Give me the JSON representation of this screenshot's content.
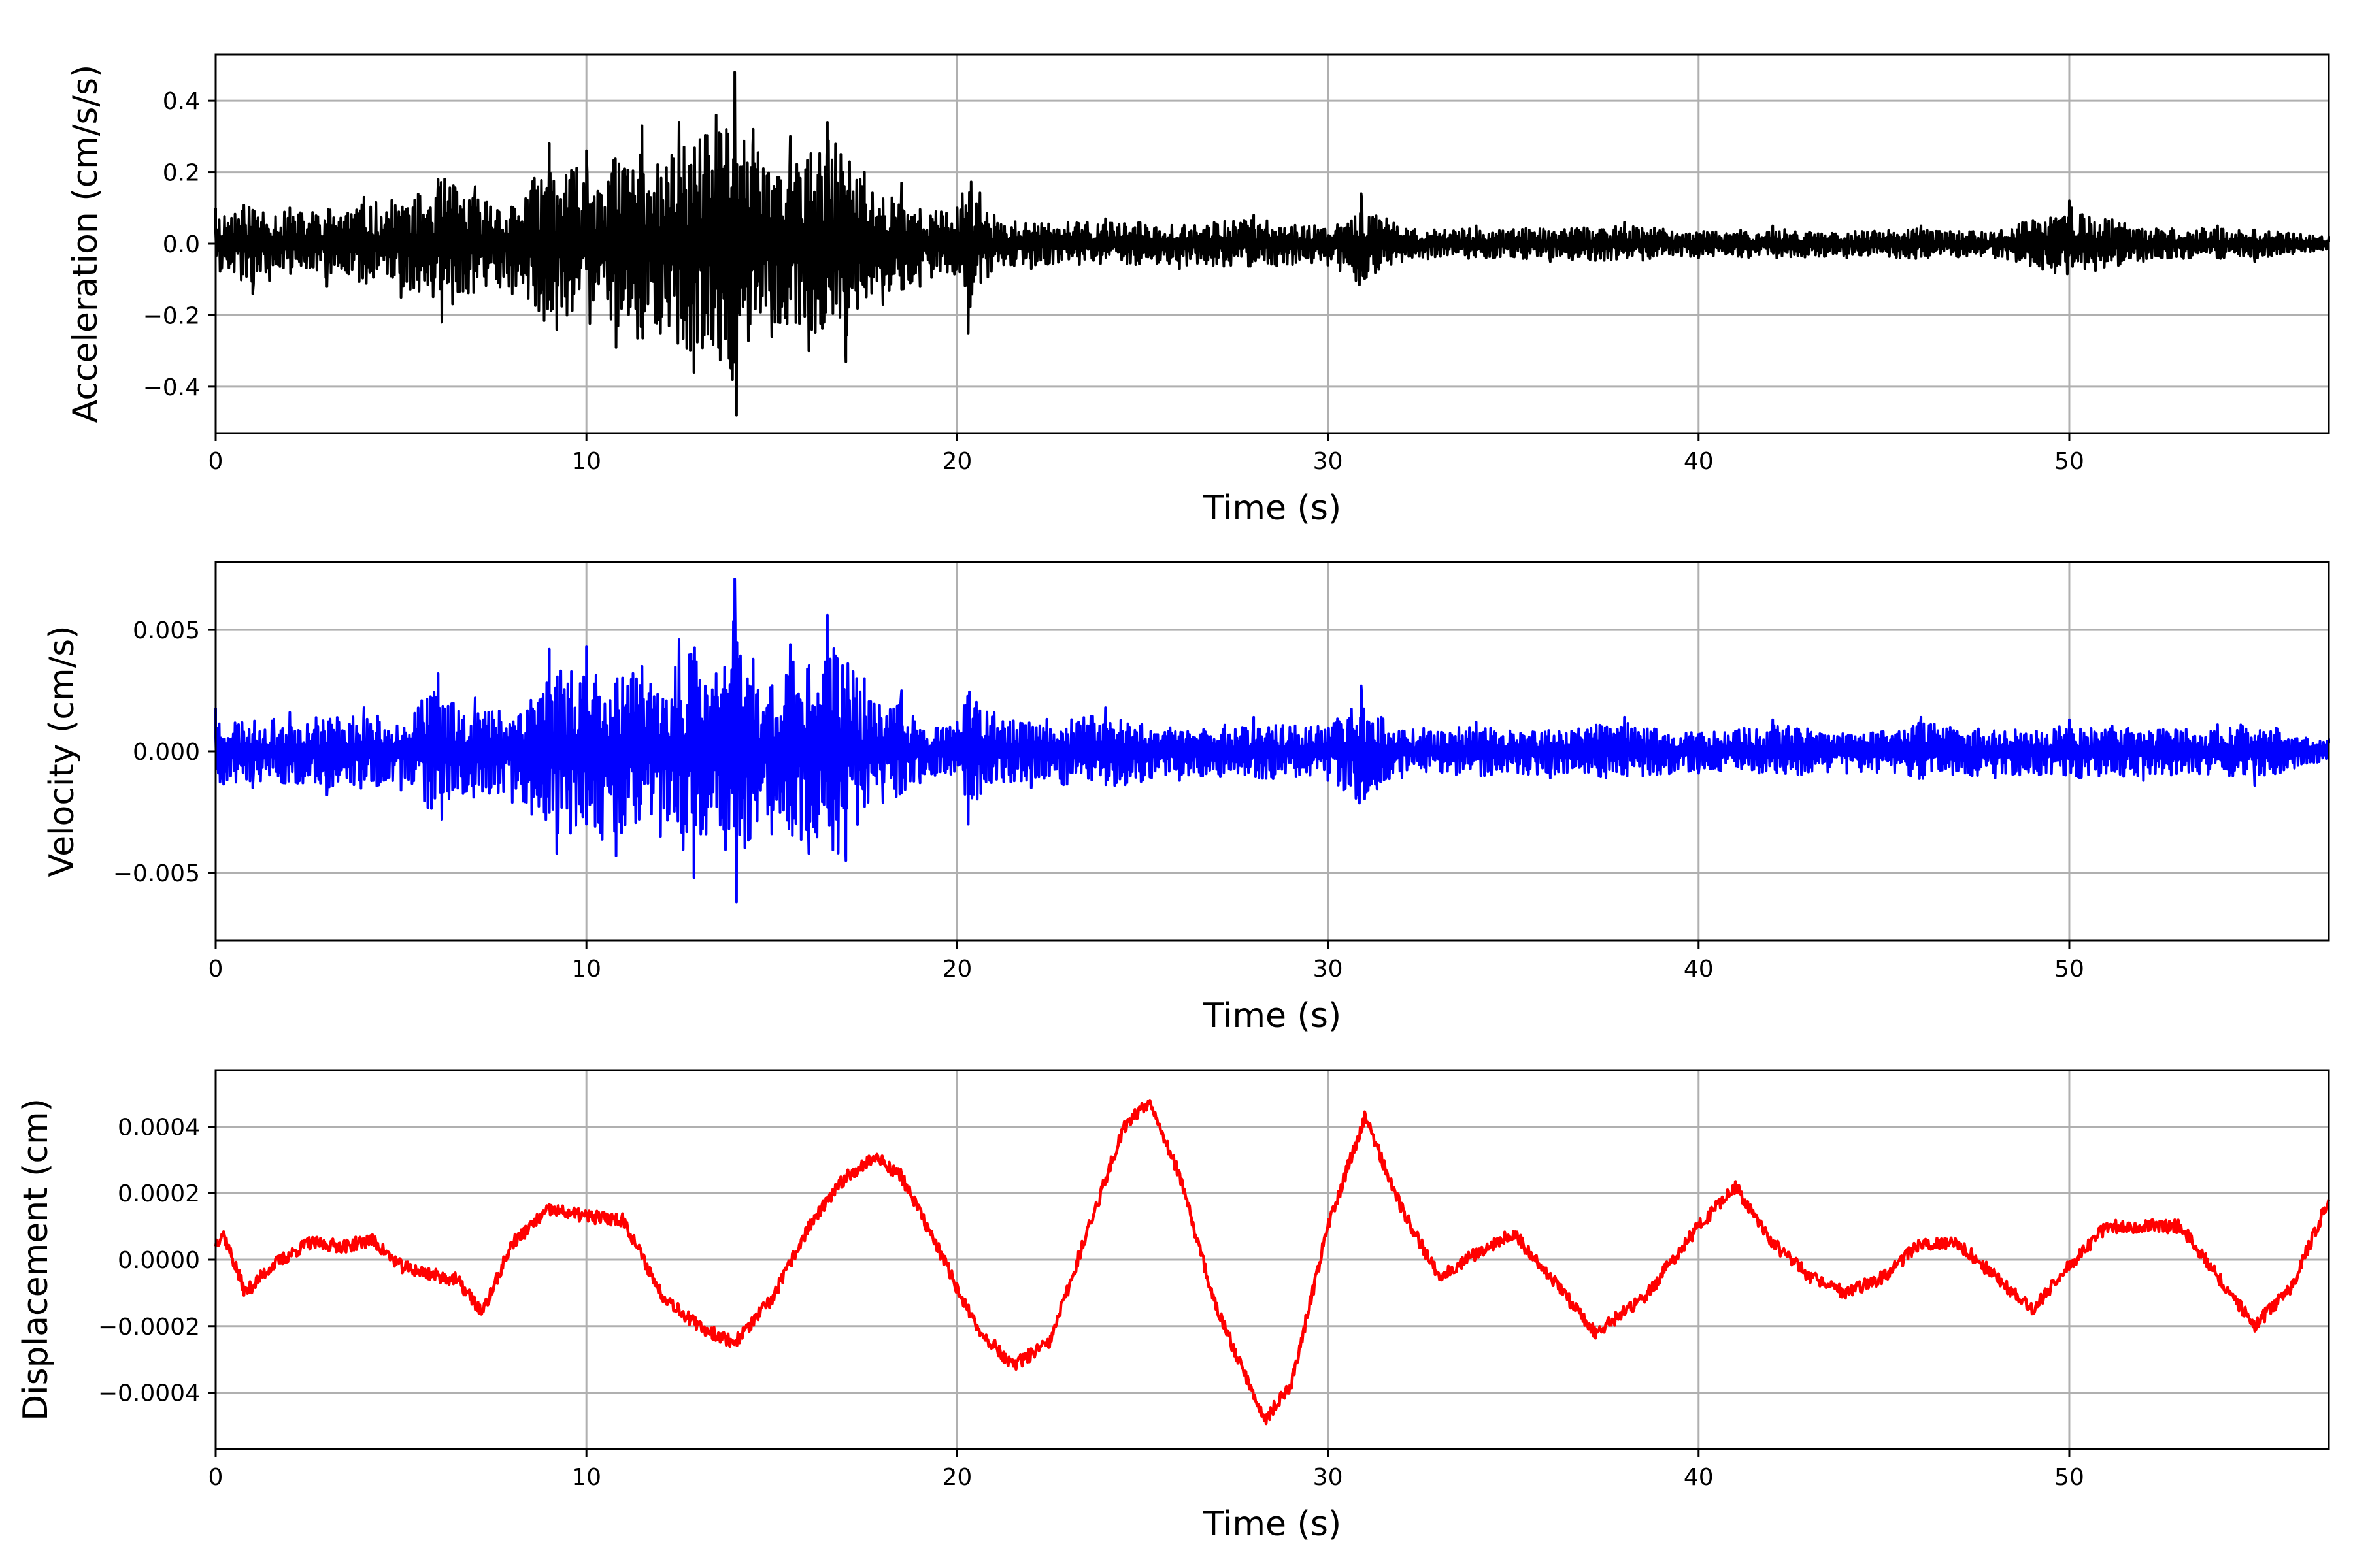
{
  "chart_data": [
    {
      "type": "line",
      "color": "#000000",
      "xlabel": "Time (s)",
      "ylabel": "Acceleration (cm/s/s)",
      "xlim": [
        0,
        57
      ],
      "ylim": [
        -0.53,
        0.53
      ],
      "grid": true,
      "xticks": [
        0,
        10,
        20,
        30,
        40,
        50
      ],
      "xtick_labels": [
        "0",
        "10",
        "20",
        "30",
        "40",
        "50"
      ],
      "yticks": [
        0.4,
        0.2,
        0.0,
        -0.2,
        -0.4
      ],
      "ytick_labels": [
        "0.4",
        "0.2",
        "0.0",
        "−0.2",
        "−0.4"
      ],
      "series": [
        {
          "x": [
            0.0,
            1.0,
            2.0,
            3.0,
            4.0,
            5.0,
            6.0,
            6.1,
            7.0,
            8.0,
            9.0,
            9.2,
            10.0,
            10.8,
            11.5,
            12.0,
            12.5,
            12.9,
            13.5,
            14.0,
            14.05,
            14.5,
            15.0,
            15.5,
            16.0,
            16.5,
            17.0,
            17.5,
            18.0,
            18.5,
            19.0,
            20.0,
            20.3,
            21.0,
            22.0,
            24.0,
            26.0,
            28.0,
            30.0,
            30.9,
            32.0,
            34.0,
            36.0,
            38.0,
            40.0,
            42.0,
            44.0,
            46.0,
            48.0,
            50.0,
            52.0,
            54.0,
            55.0,
            57.0
          ],
          "y": [
            0.1,
            -0.14,
            0.1,
            -0.12,
            0.13,
            -0.15,
            0.18,
            -0.22,
            0.16,
            -0.14,
            0.28,
            -0.24,
            0.26,
            -0.29,
            0.33,
            -0.25,
            0.34,
            -0.36,
            0.36,
            0.48,
            -0.48,
            0.32,
            -0.26,
            0.3,
            -0.3,
            0.34,
            -0.33,
            0.2,
            -0.17,
            0.17,
            -0.12,
            0.1,
            -0.25,
            0.08,
            -0.07,
            0.07,
            -0.07,
            0.08,
            -0.06,
            0.14,
            -0.05,
            0.05,
            -0.05,
            0.06,
            -0.04,
            0.05,
            -0.04,
            0.05,
            -0.04,
            0.12,
            -0.05,
            0.05,
            -0.05,
            0.02
          ]
        }
      ]
    },
    {
      "type": "line",
      "color": "#0000ff",
      "xlabel": "Time (s)",
      "ylabel": "Velocity (cm/s)",
      "xlim": [
        0,
        57
      ],
      "ylim": [
        -0.0078,
        0.0078
      ],
      "grid": true,
      "xticks": [
        0,
        10,
        20,
        30,
        40,
        50
      ],
      "xtick_labels": [
        "0",
        "10",
        "20",
        "30",
        "40",
        "50"
      ],
      "yticks": [
        0.005,
        0.0,
        -0.005
      ],
      "ytick_labels": [
        "0.005",
        "0.000",
        "−0.005"
      ],
      "series": [
        {
          "x": [
            0.0,
            1.0,
            2.0,
            3.0,
            4.0,
            5.0,
            6.0,
            6.1,
            7.0,
            8.0,
            9.0,
            9.2,
            10.0,
            10.8,
            11.5,
            12.0,
            12.5,
            12.9,
            13.5,
            14.0,
            14.05,
            14.5,
            15.0,
            15.5,
            16.0,
            16.5,
            17.0,
            17.5,
            18.0,
            18.5,
            19.0,
            20.0,
            20.3,
            21.0,
            22.0,
            24.0,
            26.0,
            28.0,
            30.0,
            30.9,
            32.0,
            34.0,
            36.0,
            38.0,
            40.0,
            42.0,
            44.0,
            46.0,
            48.0,
            50.0,
            52.0,
            54.0,
            55.0,
            57.0
          ],
          "y": [
            0.0018,
            -0.0015,
            0.0016,
            -0.0018,
            0.0018,
            -0.0016,
            0.0032,
            -0.0028,
            0.0022,
            -0.0021,
            0.0042,
            -0.0042,
            0.0043,
            -0.0043,
            0.0035,
            -0.0035,
            0.0046,
            -0.0052,
            0.0032,
            0.0071,
            -0.0062,
            0.0038,
            -0.0034,
            0.0044,
            -0.0042,
            0.0056,
            -0.0045,
            0.003,
            -0.0021,
            0.0025,
            -0.0013,
            0.0012,
            -0.003,
            0.0016,
            -0.0015,
            0.0018,
            -0.0012,
            0.0014,
            -0.0012,
            0.0027,
            -0.0011,
            0.0012,
            -0.0011,
            0.0014,
            -0.0009,
            0.0013,
            -0.0009,
            0.0014,
            -0.0011,
            0.0013,
            -0.0012,
            0.0011,
            -0.0014,
            0.0005
          ]
        }
      ]
    },
    {
      "type": "line",
      "color": "#ff0000",
      "xlabel": "Time (s)",
      "ylabel": "Displacement (cm)",
      "xlim": [
        0,
        57
      ],
      "ylim": [
        -0.00057,
        0.00057
      ],
      "grid": true,
      "xticks": [
        0,
        10,
        20,
        30,
        40,
        50
      ],
      "xtick_labels": [
        "0",
        "10",
        "20",
        "30",
        "40",
        "50"
      ],
      "yticks": [
        0.0004,
        0.0002,
        0.0,
        -0.0002,
        -0.0004
      ],
      "ytick_labels": [
        "0.0004",
        "0.0002",
        "0.0000",
        "−0.0002",
        "−0.0004"
      ],
      "series": [
        {
          "x": [
            0.0,
            0.2,
            0.8,
            1.5,
            2.5,
            3.5,
            4.2,
            5.0,
            6.0,
            6.5,
            7.2,
            8.0,
            9.0,
            10.0,
            11.0,
            12.0,
            13.0,
            14.0,
            15.0,
            16.0,
            17.0,
            17.8,
            18.5,
            19.5,
            20.5,
            21.5,
            22.5,
            23.5,
            24.5,
            25.2,
            26.0,
            27.0,
            28.3,
            29.0,
            30.0,
            31.0,
            32.0,
            33.0,
            34.0,
            35.0,
            36.0,
            37.2,
            38.5,
            40.0,
            41.0,
            42.0,
            43.0,
            44.0,
            45.0,
            46.0,
            47.0,
            48.0,
            49.0,
            50.0,
            51.0,
            52.0,
            53.0,
            54.0,
            55.0,
            56.0,
            57.0
          ],
          "y": [
            5e-05,
            8e-05,
            -0.0001,
            -2e-05,
            5e-05,
            4e-05,
            6e-05,
            -2e-05,
            -5e-05,
            -6e-05,
            -0.00016,
            5e-05,
            0.00015,
            0.00013,
            0.00012,
            -0.0001,
            -0.0002,
            -0.00025,
            -0.00012,
            0.0001,
            0.00025,
            0.00031,
            0.00025,
            3e-05,
            -0.0002,
            -0.00032,
            -0.00025,
            8e-05,
            0.0004,
            0.00048,
            0.00025,
            -0.00015,
            -0.00048,
            -0.00038,
            0.0001,
            0.00043,
            0.00015,
            -5e-05,
            2e-05,
            8e-05,
            -5e-05,
            -0.00022,
            -0.00012,
            0.0001,
            0.00022,
            5e-05,
            -5e-05,
            -0.0001,
            -5e-05,
            5e-05,
            5e-05,
            -5e-05,
            -0.00015,
            -2e-05,
            0.0001,
            0.0001,
            0.0001,
            -5e-05,
            -0.0002,
            -8e-05,
            0.00018
          ]
        }
      ]
    }
  ]
}
